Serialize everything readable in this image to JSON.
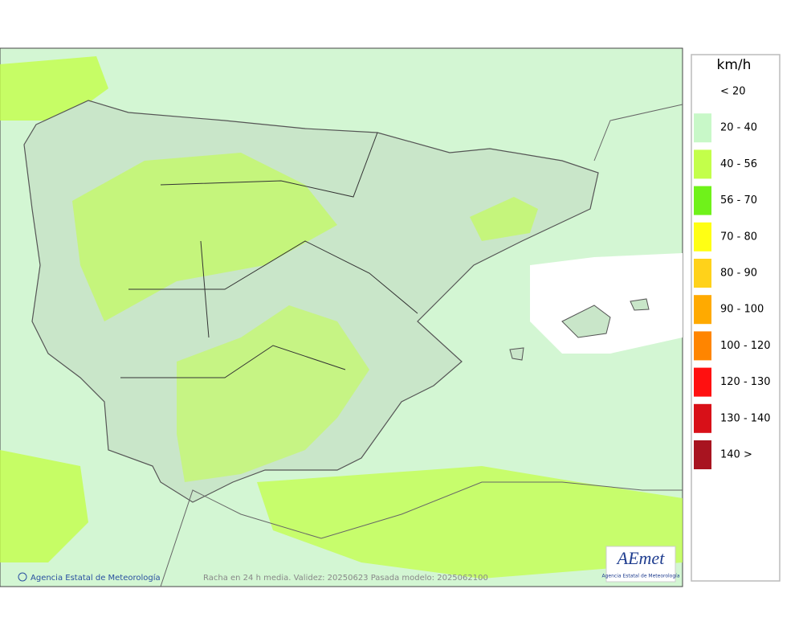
{
  "legend": {
    "title": "km/h",
    "entries": [
      {
        "label": "< 20",
        "color": "#ffffff"
      },
      {
        "label": "20 - 40",
        "color": "#c8f8c8"
      },
      {
        "label": "40 - 56",
        "color": "#c3ff4a"
      },
      {
        "label": "56 - 70",
        "color": "#6ff21a"
      },
      {
        "label": "70 - 80",
        "color": "#ffff14"
      },
      {
        "label": "80 - 90",
        "color": "#ffd21a"
      },
      {
        "label": "90 - 100",
        "color": "#ffaa00"
      },
      {
        "label": "100 - 120",
        "color": "#ff8500"
      },
      {
        "label": "120 - 130",
        "color": "#ff1010"
      },
      {
        "label": "130 - 140",
        "color": "#d81018"
      },
      {
        "label": "140 >",
        "color": "#a81420"
      }
    ]
  },
  "footer": {
    "credit": "Agencia Estatal de Meteorología",
    "caption": "Racha en 24 h media. Validez: 20250623 Pasada modelo: 2025062100"
  },
  "logo": {
    "text": "AEmet",
    "subtitle": "Agencia Estatal de Meteorología"
  }
}
